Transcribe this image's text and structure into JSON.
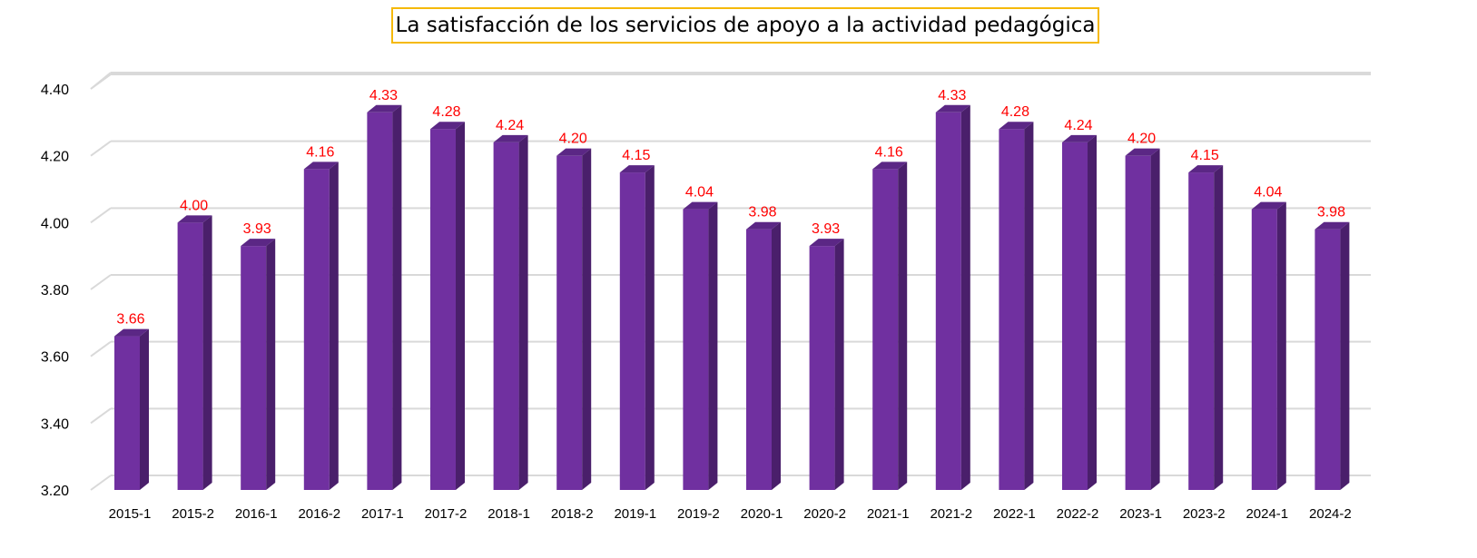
{
  "chart_data": {
    "type": "bar",
    "title": "La satisfacción de los servicios de apoyo a la actividad pedagógica",
    "categories": [
      "2015-1",
      "2015-2",
      "2016-1",
      "2016-2",
      "2017-1",
      "2017-2",
      "2018-1",
      "2018-2",
      "2019-1",
      "2019-2",
      "2020-1",
      "2020-2",
      "2021-1",
      "2021-2",
      "2022-1",
      "2022-2",
      "2023-1",
      "2023-2",
      "2024-1",
      "2024-2"
    ],
    "values": [
      3.66,
      4.0,
      3.93,
      4.16,
      4.33,
      4.28,
      4.24,
      4.2,
      4.15,
      4.04,
      3.98,
      3.93,
      4.16,
      4.33,
      4.28,
      4.24,
      4.2,
      4.15,
      4.04,
      3.98
    ],
    "data_labels": [
      "3.66",
      "4.00",
      "3.93",
      "4.16",
      "4.33",
      "4.28",
      "4.24",
      "4.20",
      "4.15",
      "4.04",
      "3.98",
      "3.93",
      "4.16",
      "4.33",
      "4.28",
      "4.24",
      "4.20",
      "4.15",
      "4.04",
      "3.98"
    ],
    "yticks": [
      "3.20",
      "3.40",
      "3.60",
      "3.80",
      "4.00",
      "4.20",
      "4.40"
    ],
    "ylim": [
      3.2,
      4.45
    ],
    "xlabel": "",
    "ylabel": "",
    "grid": true,
    "legend": "none",
    "colors": {
      "bar_front": "#7030a0",
      "bar_side": "#4a1f6b",
      "bar_top": "#5b2785",
      "data_label": "#ff0000",
      "grid": "#d9d9d9",
      "title_border": "#f5b90a"
    }
  }
}
